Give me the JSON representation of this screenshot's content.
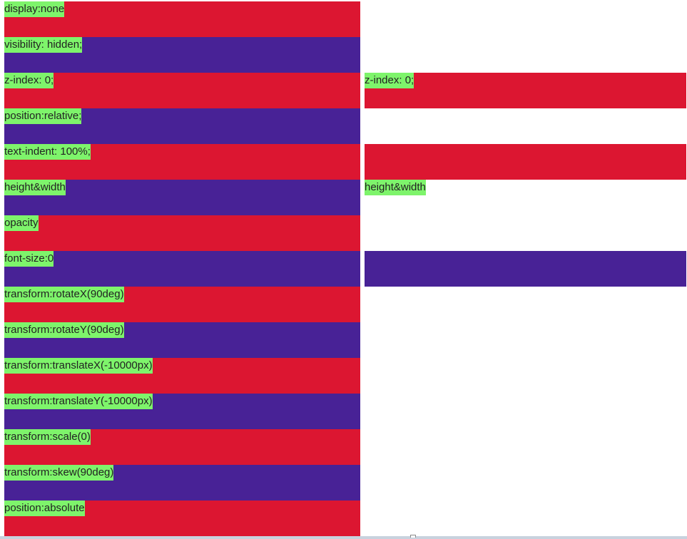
{
  "colors": {
    "red": "#dc1631",
    "purple": "#482296",
    "label_bg": "#7ef46b",
    "page_bg": "#ffffff"
  },
  "left": {
    "rows": [
      {
        "label": "display:none",
        "color": "red"
      },
      {
        "label": "visibility: hidden;",
        "color": "purple"
      },
      {
        "label": "z-index: 0;",
        "color": "red"
      },
      {
        "label": "position:relative;",
        "color": "purple"
      },
      {
        "label": "text-indent: 100%;",
        "color": "red"
      },
      {
        "label": "height&width",
        "color": "purple"
      },
      {
        "label": "opacity",
        "color": "red"
      },
      {
        "label": "font-size:0",
        "color": "purple"
      },
      {
        "label": "transform:rotateX(90deg)",
        "color": "red"
      },
      {
        "label": "transform:rotateY(90deg)",
        "color": "purple"
      },
      {
        "label": "transform:translateX(-10000px)",
        "color": "red"
      },
      {
        "label": "transform:translateY(-10000px)",
        "color": "purple"
      },
      {
        "label": "transform:scale(0)",
        "color": "red"
      },
      {
        "label": "transform:skew(90deg)",
        "color": "purple"
      },
      {
        "label": "position:absolute",
        "color": "red"
      }
    ]
  },
  "right": {
    "rows": [
      {
        "label": "",
        "color": "none"
      },
      {
        "label": "",
        "color": "none"
      },
      {
        "label": "z-index: 0;",
        "color": "red"
      },
      {
        "label": "",
        "color": "none"
      },
      {
        "label": "",
        "color": "red"
      },
      {
        "label": "height&width",
        "color": "none"
      },
      {
        "label": "",
        "color": "none"
      },
      {
        "label": "",
        "color": "purple"
      }
    ]
  }
}
